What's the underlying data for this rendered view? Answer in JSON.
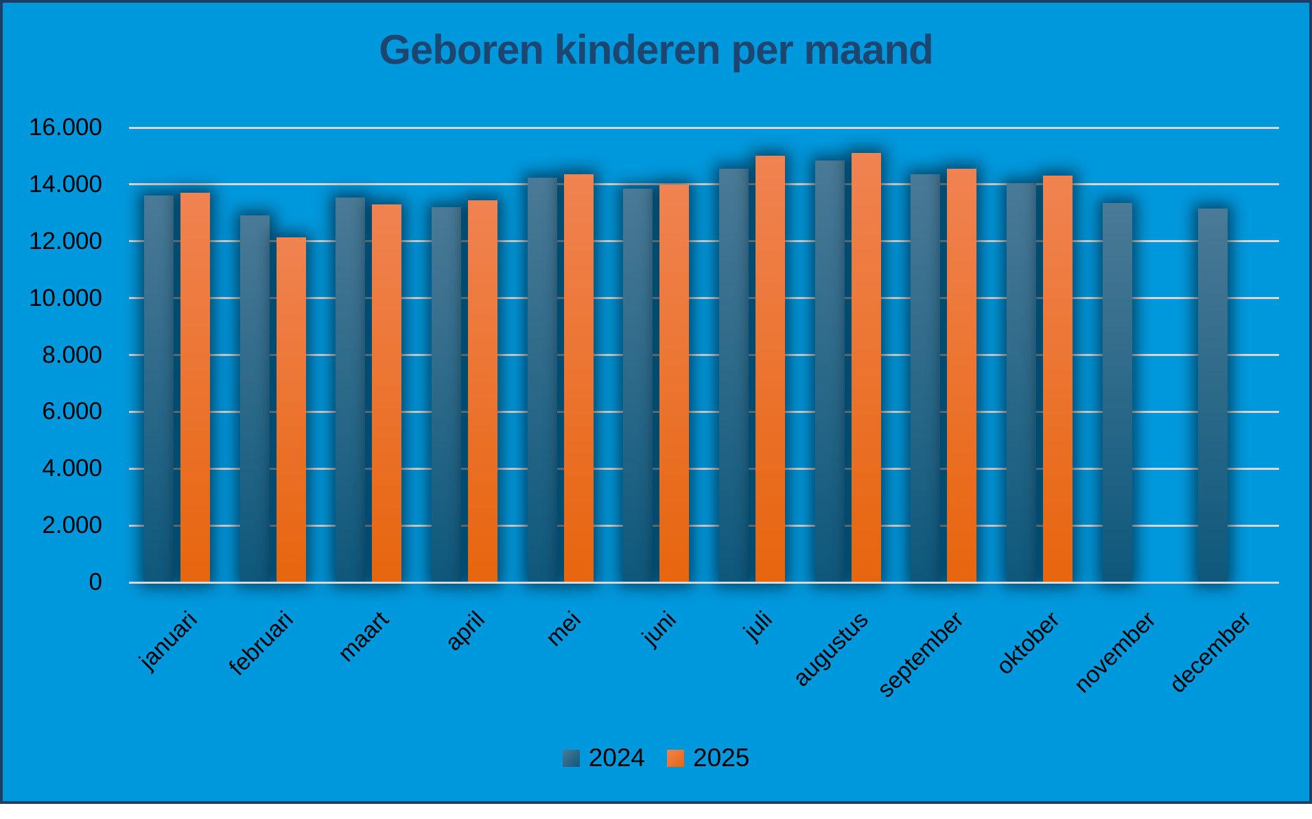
{
  "title": "Geboren kinderen per maand",
  "colors": {
    "background": "#0098DC",
    "border": "#1F3E66",
    "title": "#1C4670",
    "gridline": "#D8D8D8",
    "axis_text": "#000000",
    "series_2024_top": "#4A7A96",
    "series_2024_bottom": "#0E587C",
    "series_2025_top": "#F08352",
    "series_2025_bottom": "#E7650D"
  },
  "chart_data": {
    "type": "bar",
    "title": "Geboren kinderen per maand",
    "categories": [
      "januari",
      "februari",
      "maart",
      "april",
      "mei",
      "juni",
      "juli",
      "augustus",
      "september",
      "oktober",
      "november",
      "december"
    ],
    "series": [
      {
        "name": "2024",
        "color": "#2F6E8C",
        "values": [
          13600,
          12900,
          13550,
          13200,
          14250,
          13850,
          14550,
          14850,
          14350,
          14050,
          13350,
          13150
        ]
      },
      {
        "name": "2025",
        "color": "#ED7440",
        "values": [
          13700,
          12150,
          13300,
          13450,
          14350,
          14000,
          15000,
          15100,
          14550,
          14300,
          null,
          null
        ]
      }
    ],
    "xlabel": "",
    "ylabel": "",
    "ylim": [
      0,
      16000
    ],
    "yticks": [
      0,
      2000,
      4000,
      6000,
      8000,
      10000,
      12000,
      14000,
      16000
    ],
    "ytick_labels": [
      "0",
      "2.000",
      "4.000",
      "6.000",
      "8.000",
      "10.000",
      "12.000",
      "14.000",
      "16.000"
    ],
    "grid": true,
    "legend_position": "bottom"
  }
}
